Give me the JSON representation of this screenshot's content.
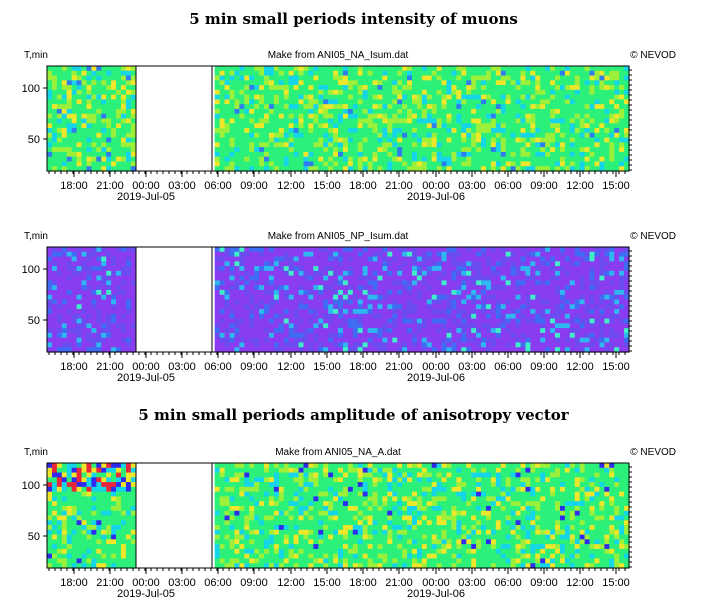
{
  "titles": {
    "intensity": "5 min small periods intensity of muons",
    "anisotropy": "5 min small periods amplitude of anisotropy vector"
  },
  "chart_data": [
    {
      "type": "heatmap",
      "source": "Make from ANI05_NA_Isum.dat",
      "copyright": "© NEVOD",
      "ylabel": "T,min",
      "yticks": [
        "100",
        "50"
      ],
      "xticks": [
        "18:00",
        "21:00",
        "00:00",
        "03:00",
        "06:00",
        "09:00",
        "12:00",
        "15:00",
        "18:00",
        "21:00",
        "00:00",
        "03:00",
        "06:00",
        "09:00",
        "12:00",
        "15:00"
      ],
      "dates": [
        "2019-Jul-05",
        "2019-Jul-06"
      ],
      "palette": "green",
      "colors": [
        "#2bf07a",
        "#9df03a",
        "#15d6e8",
        "#f0e62a",
        "#2f7cf0"
      ]
    },
    {
      "type": "heatmap",
      "source": "Make from ANI05_NP_Isum.dat",
      "copyright": "© NEVOD",
      "ylabel": "T,min",
      "yticks": [
        "100",
        "50"
      ],
      "xticks": [
        "18:00",
        "21:00",
        "00:00",
        "03:00",
        "06:00",
        "09:00",
        "12:00",
        "15:00",
        "18:00",
        "21:00",
        "00:00",
        "03:00",
        "06:00",
        "09:00",
        "12:00",
        "15:00"
      ],
      "dates": [
        "2019-Jul-05",
        "2019-Jul-06"
      ],
      "palette": "violet",
      "colors": [
        "#8a3cf0",
        "#6a4cf0",
        "#3f6cf2",
        "#2eb8f0",
        "#3ff0c8"
      ]
    },
    {
      "type": "heatmap",
      "source": "Make from ANI05_NA_A.dat",
      "copyright": "© NEVOD",
      "ylabel": "T,min",
      "yticks": [
        "100",
        "50"
      ],
      "xticks": [
        "18:00",
        "21:00",
        "00:00",
        "03:00",
        "06:00",
        "09:00",
        "12:00",
        "15:00",
        "18:00",
        "21:00",
        "00:00",
        "03:00",
        "06:00",
        "09:00",
        "12:00",
        "15:00"
      ],
      "dates": [
        "2019-Jul-05",
        "2019-Jul-06"
      ],
      "palette": "green",
      "colors": [
        "#2bf07a",
        "#9df03a",
        "#15d6e8",
        "#f0e62a",
        "#2f2af0",
        "#e8283a"
      ]
    }
  ]
}
